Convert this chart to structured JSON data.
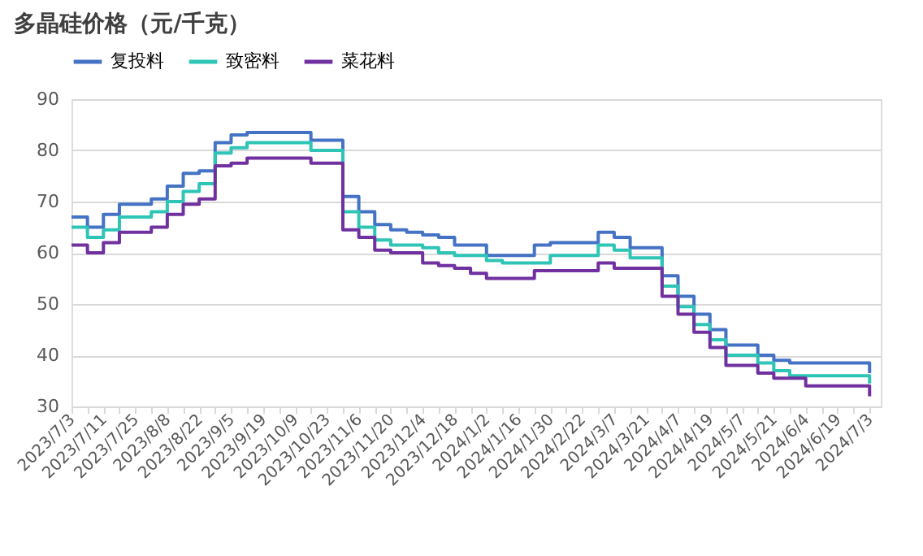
{
  "chart_data": {
    "type": "step",
    "title": "多晶硅价格（元/千克）",
    "categories": [
      "2023/7/3",
      null,
      "2023/7/11",
      null,
      "2023/7/25",
      null,
      "2023/8/8",
      null,
      "2023/8/22",
      null,
      "2023/9/5",
      null,
      "2023/9/19",
      null,
      "2023/10/9",
      null,
      "2023/10/23",
      null,
      "2023/11/6",
      null,
      "2023/11/20",
      null,
      "2023/12/4",
      null,
      "2023/12/18",
      null,
      "2024/1/2",
      null,
      "2024/1/16",
      null,
      "2024/1/30",
      null,
      "2024/2/22",
      null,
      "2024/3/7",
      null,
      "2024/3/21",
      null,
      "2024/4/7",
      null,
      "2024/4/19",
      null,
      "2024/5/7",
      null,
      "2024/5/21",
      null,
      "2024/6/4",
      null,
      "2024/6/19",
      null,
      "2024/7/3"
    ],
    "series": [
      {
        "name": "复投料",
        "color": "#4472c4",
        "values": [
          67,
          65,
          67.5,
          69.5,
          69.5,
          70.5,
          73,
          75.5,
          76,
          81.5,
          83,
          83.5,
          83.5,
          83.5,
          83.5,
          82,
          82,
          71,
          68,
          65.5,
          64.5,
          64,
          63.5,
          63,
          61.5,
          61.5,
          59.5,
          59.5,
          59.5,
          61.5,
          62,
          62,
          62,
          64,
          63,
          61,
          61,
          55.5,
          51.5,
          48,
          45,
          42,
          42,
          40,
          39,
          38.5,
          38.5,
          38.5,
          38.5,
          38.5,
          36.5
        ]
      },
      {
        "name": "致密料",
        "color": "#2ec4b6",
        "values": [
          65,
          63,
          64.5,
          67,
          67,
          68,
          70,
          72,
          73.5,
          79.5,
          80.5,
          81.5,
          81.5,
          81.5,
          81.5,
          80,
          80,
          68,
          65,
          62.5,
          61.5,
          61.5,
          61,
          60,
          59.5,
          59.5,
          58.5,
          58,
          58,
          58,
          59.5,
          59.5,
          59.5,
          61.5,
          60.5,
          59,
          59,
          53.5,
          49.5,
          46,
          43,
          40,
          40,
          38.5,
          37,
          36,
          36,
          36,
          36,
          36,
          34.5
        ]
      },
      {
        "name": "菜花料",
        "color": "#7030a0",
        "values": [
          61.5,
          60,
          62,
          64,
          64,
          65,
          67.5,
          69.5,
          70.5,
          77,
          77.5,
          78.5,
          78.5,
          78.5,
          78.5,
          77.5,
          77.5,
          64.5,
          63,
          60.5,
          60,
          60,
          58,
          57.5,
          57,
          56,
          55,
          55,
          55,
          56.5,
          56.5,
          56.5,
          56.5,
          58,
          57,
          57,
          57,
          51.5,
          48,
          44.5,
          41.5,
          38,
          38,
          36.5,
          35.5,
          35.5,
          34,
          34,
          34,
          34,
          32
        ]
      }
    ],
    "ylim": [
      30,
      90
    ],
    "yticks": [
      30,
      40,
      50,
      60,
      70,
      80,
      90
    ],
    "grid": "y",
    "legend": "top",
    "line_style": "solid"
  }
}
